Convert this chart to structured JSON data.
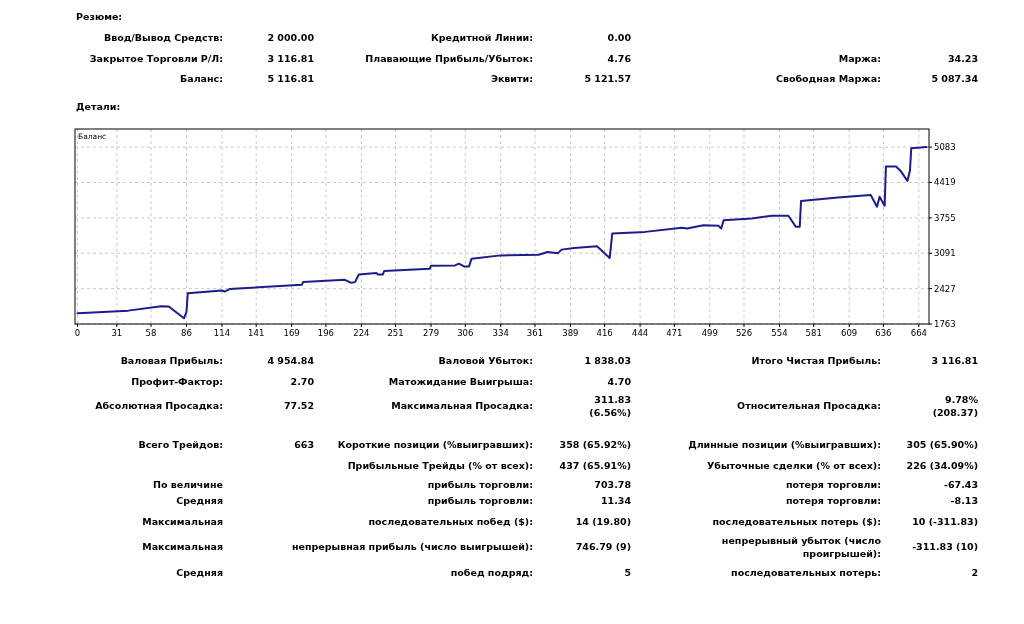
{
  "chart_data": [
    {
      "type": "other",
      "title": "Резюме:",
      "annotations": [
        "Ввод/Вывод Средств:",
        "2 000.00",
        "Кредитной Линии:",
        "0.00",
        "Закрытое Торговли Р/Л:",
        "3 116.81",
        "Плавающие Прибыль/Убыток:",
        "4.76",
        "Маржа:",
        "34.23",
        "Баланс:",
        "5 116.81",
        "Эквити:",
        "5 121.57",
        "Свободная Маржа:",
        "5 087.34"
      ]
    },
    {
      "type": "line",
      "title": "Детали:",
      "legend": "top left",
      "grid": true,
      "x": [
        0,
        40,
        66,
        72,
        84,
        86,
        87,
        114,
        116,
        120,
        177,
        178,
        211,
        216,
        219,
        222,
        236,
        237,
        241,
        242,
        278,
        279,
        298,
        301,
        305,
        309,
        311,
        334,
        364,
        371,
        379,
        382,
        392,
        410,
        420,
        422,
        448,
        477,
        481,
        494,
        506,
        508,
        510,
        532,
        548,
        561,
        567,
        570,
        571,
        600,
        626,
        631,
        633,
        637,
        638,
        646,
        650,
        655,
        657,
        658,
        670
      ],
      "series": [
        {
          "name": "Баланс",
          "color": "#1c1c8c",
          "values": [
            1965,
            2014,
            2097,
            2090,
            1870,
            1990,
            2342,
            2391,
            2372,
            2419,
            2499,
            2549,
            2593,
            2536,
            2549,
            2693,
            2718,
            2693,
            2693,
            2757,
            2800,
            2857,
            2863,
            2895,
            2844,
            2844,
            2989,
            3051,
            3064,
            3115,
            3089,
            3159,
            3190,
            3221,
            3002,
            3460,
            3492,
            3568,
            3555,
            3617,
            3605,
            3555,
            3712,
            3743,
            3794,
            3794,
            3587,
            3587,
            4070,
            4139,
            4183,
            3964,
            4152,
            3983,
            4718,
            4718,
            4624,
            4447,
            4649,
            5063,
            5083
          ]
        }
      ],
      "xlim": [
        -2,
        672
      ],
      "xticks": [
        0,
        31,
        58,
        86,
        114,
        141,
        169,
        196,
        224,
        251,
        279,
        306,
        334,
        361,
        389,
        416,
        444,
        471,
        499,
        526,
        554,
        581,
        609,
        636,
        664
      ],
      "ylim": [
        1763,
        5423
      ],
      "yticks": [
        1763,
        2427,
        3091,
        3755,
        4419,
        5083
      ]
    },
    {
      "type": "other",
      "annotations": [
        "Валовая Прибыль:",
        "4 954.84",
        "Валовой Убыток:",
        "1 838.03",
        "Итого Чистая Прибыль:",
        "3 116.81",
        "Профит-Фактор:",
        "2.70",
        "Матожидание Выигрыша:",
        "4.70",
        "Абсолютная Просадка:",
        "77.52",
        "Максимальная Просадка:",
        "311.83\n(6.56%)",
        "Относительная Просадка:",
        "9.78%\n(208.37)",
        "Всего Трейдов:",
        "663",
        "Короткие позиции (%выигравших):",
        "358 (65.92%)",
        "Длинные позиции (%выигравших):",
        "305 (65.90%)",
        "Прибыльные Трейды (% от всех):",
        "437 (65.91%)",
        "Убыточные сделки (% от всех):",
        "226 (34.09%)",
        "По величине",
        "прибыль торговли:",
        "703.78",
        "потеря торговли:",
        "-67.43",
        "Средняя",
        "прибыль торговли:",
        "11.34",
        "потеря торговли:",
        "-8.13",
        "Максимальная",
        "последовательных побед ($):",
        "14 (19.80)",
        "последовательных потерь ($):",
        "10 (-311.83)",
        "Максимальная",
        "непрерывная прибыль (число выигрышей):",
        "746.79 (9)",
        "непрерывный убыток (число\nпроигрышей):",
        "-311.83 (10)",
        "Средняя",
        "побед подряд:",
        "5",
        "последовательных потерь:",
        "2"
      ]
    }
  ]
}
